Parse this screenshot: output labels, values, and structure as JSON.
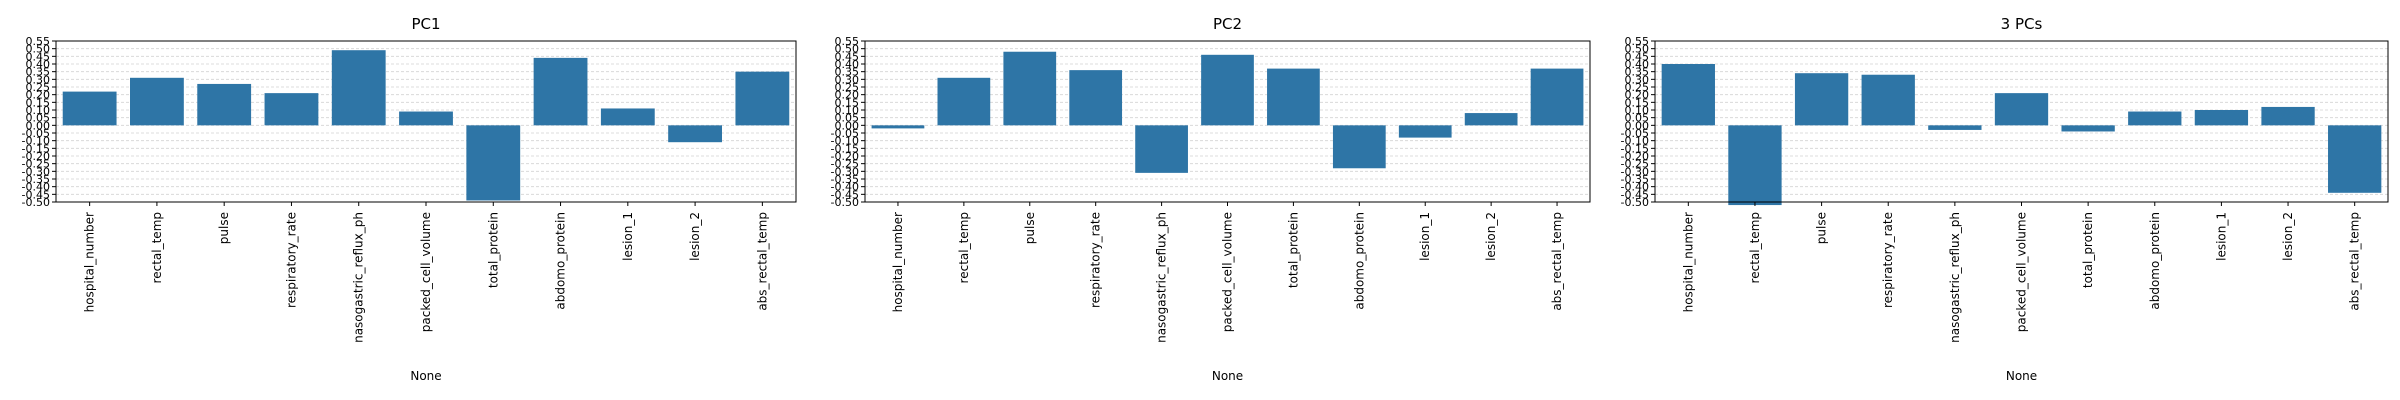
{
  "chart_data": [
    {
      "type": "bar",
      "title": "PC1",
      "xlabel": "None",
      "ylabel": "",
      "ylim": [
        -0.5,
        0.55
      ],
      "y_ticks": [
        "0.55",
        "0.50",
        "0.45",
        "0.40",
        "0.35",
        "0.30",
        "0.25",
        "0.20",
        "0.15",
        "0.10",
        "0.05",
        "0.00",
        "-0.05",
        "-0.10",
        "-0.15",
        "-0.20",
        "-0.25",
        "-0.30",
        "-0.35",
        "-0.40",
        "-0.45",
        "-0.50"
      ],
      "grid": true,
      "bar_color": "#2e75a6",
      "categories": [
        "hospital_number",
        "rectal_temp",
        "pulse",
        "respiratory_rate",
        "nasogastric_reflux_ph",
        "packed_cell_volume",
        "total_protein",
        "abdomo_protein",
        "lesion_1",
        "lesion_2",
        "abs_rectal_temp"
      ],
      "values": [
        0.22,
        0.31,
        0.27,
        0.21,
        0.49,
        0.09,
        -0.49,
        0.44,
        0.11,
        -0.11,
        0.35
      ]
    },
    {
      "type": "bar",
      "title": "PC2",
      "xlabel": "None",
      "ylabel": "",
      "ylim": [
        -0.5,
        0.55
      ],
      "y_ticks": [
        "0.55",
        "0.50",
        "0.45",
        "0.40",
        "0.35",
        "0.30",
        "0.25",
        "0.20",
        "0.15",
        "0.10",
        "0.05",
        "0.00",
        "-0.05",
        "-0.10",
        "-0.15",
        "-0.20",
        "-0.25",
        "-0.30",
        "-0.35",
        "-0.40",
        "-0.45",
        "-0.50"
      ],
      "grid": true,
      "bar_color": "#2e75a6",
      "categories": [
        "hospital_number",
        "rectal_temp",
        "pulse",
        "respiratory_rate",
        "nasogastric_reflux_ph",
        "packed_cell_volume",
        "total_protein",
        "abdomo_protein",
        "lesion_1",
        "lesion_2",
        "abs_rectal_temp"
      ],
      "values": [
        -0.02,
        0.31,
        0.48,
        0.36,
        -0.31,
        0.46,
        0.37,
        -0.28,
        -0.08,
        0.08,
        0.37
      ]
    },
    {
      "type": "bar",
      "title": "3 PCs",
      "xlabel": "None",
      "ylabel": "",
      "ylim": [
        -0.5,
        0.55
      ],
      "y_ticks": [
        "0.55",
        "0.50",
        "0.45",
        "0.40",
        "0.35",
        "0.30",
        "0.25",
        "0.20",
        "0.15",
        "0.10",
        "0.05",
        "0.00",
        "-0.05",
        "-0.10",
        "-0.15",
        "-0.20",
        "-0.25",
        "-0.30",
        "-0.35",
        "-0.40",
        "-0.45",
        "-0.50"
      ],
      "grid": true,
      "bar_color": "#2e75a6",
      "categories": [
        "hospital_number",
        "rectal_temp",
        "pulse",
        "respiratory_rate",
        "nasogastric_reflux_ph",
        "packed_cell_volume",
        "total_protein",
        "abdomo_protein",
        "lesion_1",
        "lesion_2",
        "abs_rectal_temp"
      ],
      "values": [
        0.4,
        -0.52,
        0.34,
        0.33,
        -0.03,
        0.21,
        -0.04,
        0.09,
        0.1,
        0.12,
        -0.44
      ]
    }
  ]
}
